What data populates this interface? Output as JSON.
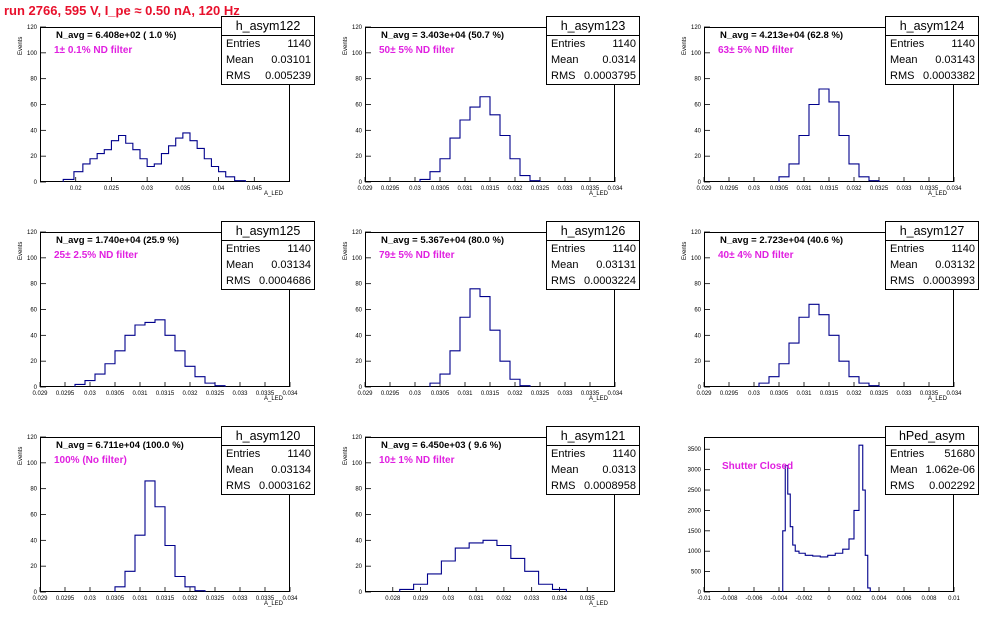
{
  "title": "run 2766,   595 V, I_pe ≈ 0.50 nA, 120 Hz",
  "colors": {
    "title": "#e8102c",
    "filter_text": "#e020e0",
    "histogram": "#00008b"
  },
  "stat_labels": {
    "entries": "Entries",
    "mean": "Mean",
    "rms": "RMS"
  },
  "panels": [
    {
      "id": "h_asym122",
      "name": "h_asym122",
      "entries": "1140",
      "mean": "0.03101",
      "rms": "0.005239",
      "navg": "N_avg = 6.408e+02 ( 1.0 %)",
      "filter": "1± 0.1% ND filter",
      "ylabel": "Events",
      "xlabel": "A_LED"
    },
    {
      "id": "h_asym123",
      "name": "h_asym123",
      "entries": "1140",
      "mean": "0.0314",
      "rms": "0.0003795",
      "navg": "N_avg = 3.403e+04 (50.7 %)",
      "filter": "50± 5% ND filter",
      "ylabel": "Events",
      "xlabel": "A_LED"
    },
    {
      "id": "h_asym124",
      "name": "h_asym124",
      "entries": "1140",
      "mean": "0.03143",
      "rms": "0.0003382",
      "navg": "N_avg = 4.213e+04 (62.8 %)",
      "filter": "63± 5% ND filter",
      "ylabel": "Events",
      "xlabel": "A_LED"
    },
    {
      "id": "h_asym125",
      "name": "h_asym125",
      "entries": "1140",
      "mean": "0.03134",
      "rms": "0.0004686",
      "navg": "N_avg = 1.740e+04 (25.9 %)",
      "filter": "25± 2.5% ND filter",
      "ylabel": "Events",
      "xlabel": "A_LED"
    },
    {
      "id": "h_asym126",
      "name": "h_asym126",
      "entries": "1140",
      "mean": "0.03131",
      "rms": "0.0003224",
      "navg": "N_avg = 5.367e+04 (80.0 %)",
      "filter": "79± 5% ND filter",
      "ylabel": "Events",
      "xlabel": "A_LED"
    },
    {
      "id": "h_asym127",
      "name": "h_asym127",
      "entries": "1140",
      "mean": "0.03132",
      "rms": "0.0003993",
      "navg": "N_avg = 2.723e+04 (40.6 %)",
      "filter": "40± 4% ND filter",
      "ylabel": "Events",
      "xlabel": "A_LED"
    },
    {
      "id": "h_asym120",
      "name": "h_asym120",
      "entries": "1140",
      "mean": "0.03134",
      "rms": "0.0003162",
      "navg": "N_avg = 6.711e+04 (100.0 %)",
      "filter": "100% (No filter)",
      "ylabel": "Events",
      "xlabel": "A_LED"
    },
    {
      "id": "h_asym121",
      "name": "h_asym121",
      "entries": "1140",
      "mean": "0.0313",
      "rms": "0.0008958",
      "navg": "N_avg = 6.450e+03 ( 9.6 %)",
      "filter": "10± 1% ND filter",
      "ylabel": "Events",
      "xlabel": "A_LED"
    },
    {
      "id": "hPed_asym",
      "name": "hPed_asym",
      "entries": "51680",
      "mean": "1.062e-06",
      "rms": "0.002292",
      "navg": "",
      "filter": "Shutter Closed",
      "ylabel": "",
      "xlabel": ""
    }
  ],
  "chart_data": [
    {
      "type": "bar",
      "title": "h_asym122",
      "ylabel": "Events",
      "xlabel": "A_LED",
      "xlim": [
        0.015,
        0.05
      ],
      "ylim": [
        0,
        120
      ],
      "xticks": [
        "0.02",
        "0.025",
        "0.03",
        "0.035",
        "0.04",
        "0.045"
      ],
      "yticks": [
        "0",
        "20",
        "40",
        "60",
        "80",
        "100",
        "120"
      ],
      "x": [
        0.019,
        0.0205,
        0.0215,
        0.0225,
        0.0235,
        0.0245,
        0.0255,
        0.0265,
        0.0275,
        0.0285,
        0.0295,
        0.0305,
        0.0315,
        0.0325,
        0.0335,
        0.0345,
        0.0355,
        0.0365,
        0.0375,
        0.0385,
        0.0395,
        0.0405,
        0.0415,
        0.043
      ],
      "values": [
        2,
        8,
        14,
        18,
        22,
        25,
        32,
        36,
        30,
        25,
        18,
        12,
        14,
        22,
        28,
        34,
        38,
        32,
        26,
        18,
        12,
        8,
        4,
        1
      ]
    },
    {
      "type": "bar",
      "title": "h_asym123",
      "ylabel": "Events",
      "xlabel": "A_LED",
      "xlim": [
        0.029,
        0.034
      ],
      "ylim": [
        0,
        120
      ],
      "xticks": [
        "0.029",
        "0.0295",
        "0.03",
        "0.0305",
        "0.031",
        "0.0315",
        "0.032",
        "0.0325",
        "0.033",
        "0.0335",
        "0.034"
      ],
      "yticks": [
        "0",
        "20",
        "40",
        "60",
        "80",
        "100",
        "120"
      ],
      "x": [
        0.0302,
        0.0304,
        0.0306,
        0.0308,
        0.031,
        0.0312,
        0.0314,
        0.0316,
        0.0318,
        0.032,
        0.0322,
        0.0324
      ],
      "values": [
        2,
        8,
        18,
        34,
        48,
        58,
        66,
        52,
        36,
        18,
        5,
        1
      ]
    },
    {
      "type": "bar",
      "title": "h_asym124",
      "ylabel": "Events",
      "xlabel": "A_LED",
      "xlim": [
        0.029,
        0.034
      ],
      "ylim": [
        0,
        120
      ],
      "xticks": [
        "0.029",
        "0.0295",
        "0.03",
        "0.0305",
        "0.031",
        "0.0315",
        "0.032",
        "0.0325",
        "0.033",
        "0.0335",
        "0.034"
      ],
      "yticks": [
        "0",
        "20",
        "40",
        "60",
        "80",
        "100",
        "120"
      ],
      "x": [
        0.0306,
        0.0308,
        0.031,
        0.0312,
        0.0314,
        0.0316,
        0.0318,
        0.032,
        0.0322,
        0.0324
      ],
      "values": [
        4,
        14,
        36,
        60,
        72,
        62,
        36,
        14,
        4,
        1
      ]
    },
    {
      "type": "bar",
      "title": "h_asym125",
      "ylabel": "Events",
      "xlabel": "A_LED",
      "xlim": [
        0.029,
        0.034
      ],
      "ylim": [
        0,
        120
      ],
      "xticks": [
        "0.029",
        "0.0295",
        "0.03",
        "0.0305",
        "0.031",
        "0.0315",
        "0.032",
        "0.0325",
        "0.033",
        "0.0335",
        "0.034"
      ],
      "yticks": [
        "0",
        "20",
        "40",
        "60",
        "80",
        "100",
        "120"
      ],
      "x": [
        0.0298,
        0.03,
        0.0302,
        0.0304,
        0.0306,
        0.0308,
        0.031,
        0.0312,
        0.0314,
        0.0316,
        0.0318,
        0.032,
        0.0322,
        0.0324,
        0.0326
      ],
      "values": [
        2,
        5,
        10,
        18,
        28,
        40,
        48,
        50,
        52,
        40,
        28,
        16,
        8,
        3,
        1
      ]
    },
    {
      "type": "bar",
      "title": "h_asym126",
      "ylabel": "Events",
      "xlabel": "A_LED",
      "xlim": [
        0.029,
        0.034
      ],
      "ylim": [
        0,
        120
      ],
      "xticks": [
        "0.029",
        "0.0295",
        "0.03",
        "0.0305",
        "0.031",
        "0.0315",
        "0.032",
        "0.0325",
        "0.033",
        "0.0335",
        "0.034"
      ],
      "yticks": [
        "0",
        "20",
        "40",
        "60",
        "80",
        "100",
        "120"
      ],
      "x": [
        0.0304,
        0.0306,
        0.0308,
        0.031,
        0.0312,
        0.0314,
        0.0316,
        0.0318,
        0.032,
        0.0322
      ],
      "values": [
        3,
        10,
        28,
        54,
        76,
        70,
        44,
        20,
        6,
        1
      ]
    },
    {
      "type": "bar",
      "title": "h_asym127",
      "ylabel": "Events",
      "xlabel": "A_LED",
      "xlim": [
        0.029,
        0.034
      ],
      "ylim": [
        0,
        120
      ],
      "xticks": [
        "0.029",
        "0.0295",
        "0.03",
        "0.0305",
        "0.031",
        "0.0315",
        "0.032",
        "0.0325",
        "0.033",
        "0.0335",
        "0.034"
      ],
      "yticks": [
        "0",
        "20",
        "40",
        "60",
        "80",
        "100",
        "120"
      ],
      "x": [
        0.0302,
        0.0304,
        0.0306,
        0.0308,
        0.031,
        0.0312,
        0.0314,
        0.0316,
        0.0318,
        0.032,
        0.0322,
        0.0324
      ],
      "values": [
        3,
        8,
        18,
        34,
        54,
        64,
        56,
        40,
        20,
        8,
        3,
        1
      ]
    },
    {
      "type": "bar",
      "title": "h_asym120",
      "ylabel": "Events",
      "xlabel": "A_LED",
      "xlim": [
        0.029,
        0.034
      ],
      "ylim": [
        0,
        120
      ],
      "xticks": [
        "0.029",
        "0.0295",
        "0.03",
        "0.0305",
        "0.031",
        "0.0315",
        "0.032",
        "0.0325",
        "0.033",
        "0.0335",
        "0.034"
      ],
      "yticks": [
        "0",
        "20",
        "40",
        "60",
        "80",
        "100",
        "120"
      ],
      "x": [
        0.0306,
        0.0308,
        0.031,
        0.0312,
        0.0314,
        0.0316,
        0.0318,
        0.032,
        0.0322
      ],
      "values": [
        4,
        16,
        44,
        86,
        66,
        36,
        12,
        4,
        1
      ]
    },
    {
      "type": "bar",
      "title": "h_asym121",
      "ylabel": "Events",
      "xlabel": "A_LED",
      "xlim": [
        0.027,
        0.036
      ],
      "ylim": [
        0,
        120
      ],
      "xticks": [
        "0.028",
        "0.029",
        "0.03",
        "0.031",
        "0.032",
        "0.033",
        "0.034",
        "0.035"
      ],
      "yticks": [
        "0",
        "20",
        "40",
        "60",
        "80",
        "100",
        "120"
      ],
      "x": [
        0.0285,
        0.029,
        0.0295,
        0.03,
        0.0305,
        0.031,
        0.0315,
        0.032,
        0.0325,
        0.033,
        0.0335,
        0.034
      ],
      "values": [
        2,
        6,
        14,
        24,
        34,
        38,
        40,
        36,
        26,
        16,
        6,
        2
      ]
    },
    {
      "type": "bar",
      "title": "hPed_asym",
      "ylabel": "",
      "xlabel": "",
      "xlim": [
        -0.01,
        0.01
      ],
      "ylim": [
        0,
        3800
      ],
      "xticks": [
        "-0.01",
        "-0.008",
        "-0.006",
        "-0.004",
        "-0.002",
        "0",
        "0.002",
        "0.004",
        "0.006",
        "0.008",
        "0.01"
      ],
      "yticks": [
        "0",
        "500",
        "1000",
        "1500",
        "2000",
        "2500",
        "3000",
        "3500"
      ],
      "x": [
        -0.0036,
        -0.0034,
        -0.0032,
        -0.003,
        -0.0028,
        -0.0026,
        -0.0022,
        -0.0016,
        -0.001,
        -0.0004,
        0.0002,
        0.0008,
        0.0014,
        0.0018,
        0.0022,
        0.0026,
        0.0028,
        0.003,
        0.0032
      ],
      "values": [
        1500,
        3100,
        2400,
        1600,
        1150,
        1000,
        950,
        900,
        880,
        860,
        900,
        950,
        1050,
        1300,
        2000,
        3600,
        2500,
        900,
        100
      ]
    }
  ]
}
